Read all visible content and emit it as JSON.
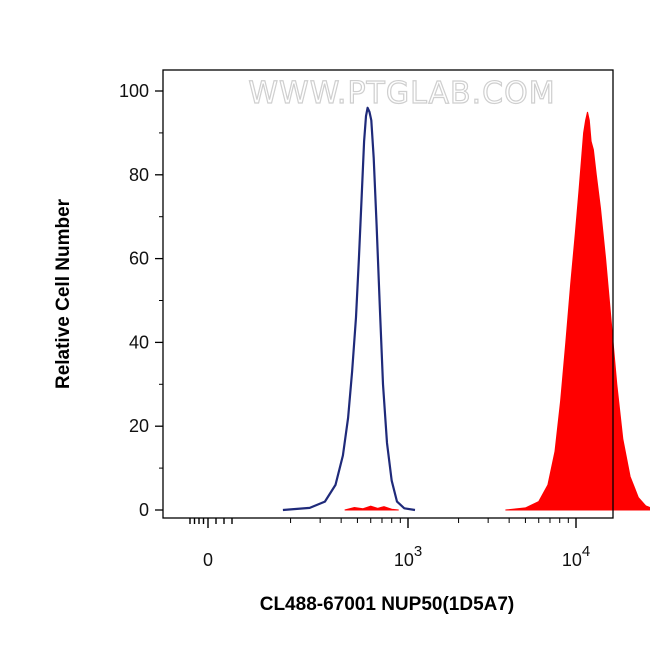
{
  "chart_data": {
    "type": "area",
    "title": "",
    "watermark": "WWW.PTGLAB.COM",
    "xlabel": "CL488-67001 NUP50(1D5A7)",
    "ylabel": "Relative Cell Number",
    "x_scale": "logicle",
    "ylim": [
      0,
      100
    ],
    "y_ticks": [
      "0",
      "20",
      "40",
      "60",
      "80",
      "100"
    ],
    "x_ticks": [
      {
        "value": 0,
        "base": "0",
        "exp": ""
      },
      {
        "value": 1000,
        "base": "10",
        "exp": "3"
      },
      {
        "value": 10000,
        "base": "10",
        "exp": "4"
      }
    ],
    "grid": false,
    "legend": "none",
    "series": [
      {
        "style": "line",
        "color": "#1f2a7a",
        "points": [
          [
            180,
            0
          ],
          [
            260,
            0.5
          ],
          [
            320,
            2
          ],
          [
            370,
            6
          ],
          [
            410,
            13
          ],
          [
            440,
            22
          ],
          [
            465,
            33
          ],
          [
            490,
            46
          ],
          [
            510,
            60
          ],
          [
            530,
            75
          ],
          [
            548,
            88
          ],
          [
            562,
            94
          ],
          [
            575,
            96
          ],
          [
            590,
            95
          ],
          [
            605,
            93
          ],
          [
            625,
            84
          ],
          [
            650,
            68
          ],
          [
            680,
            48
          ],
          [
            710,
            30
          ],
          [
            750,
            16
          ],
          [
            800,
            7
          ],
          [
            860,
            2
          ],
          [
            950,
            0.4
          ],
          [
            1100,
            0
          ]
        ]
      },
      {
        "style": "fill",
        "color": "#ff0000",
        "points": [
          [
            3800,
            0
          ],
          [
            5000,
            0.5
          ],
          [
            6000,
            2
          ],
          [
            6800,
            6
          ],
          [
            7500,
            14
          ],
          [
            8100,
            26
          ],
          [
            8700,
            40
          ],
          [
            9300,
            54
          ],
          [
            9900,
            66
          ],
          [
            10400,
            76
          ],
          [
            10800,
            84
          ],
          [
            11100,
            90
          ],
          [
            11400,
            93
          ],
          [
            11700,
            95
          ],
          [
            12000,
            93
          ],
          [
            12300,
            88
          ],
          [
            12700,
            86
          ],
          [
            13200,
            80
          ],
          [
            14000,
            72
          ],
          [
            15000,
            60
          ],
          [
            16200,
            45
          ],
          [
            17500,
            30
          ],
          [
            19000,
            17
          ],
          [
            21000,
            8
          ],
          [
            23500,
            3
          ],
          [
            26000,
            1
          ],
          [
            30000,
            0
          ]
        ]
      },
      {
        "style": "fill",
        "color": "#ff0000",
        "points": [
          [
            420,
            0
          ],
          [
            480,
            0.6
          ],
          [
            540,
            0.3
          ],
          [
            600,
            0.9
          ],
          [
            660,
            0.4
          ],
          [
            720,
            0.8
          ],
          [
            800,
            0.2
          ],
          [
            880,
            0
          ]
        ]
      }
    ]
  }
}
